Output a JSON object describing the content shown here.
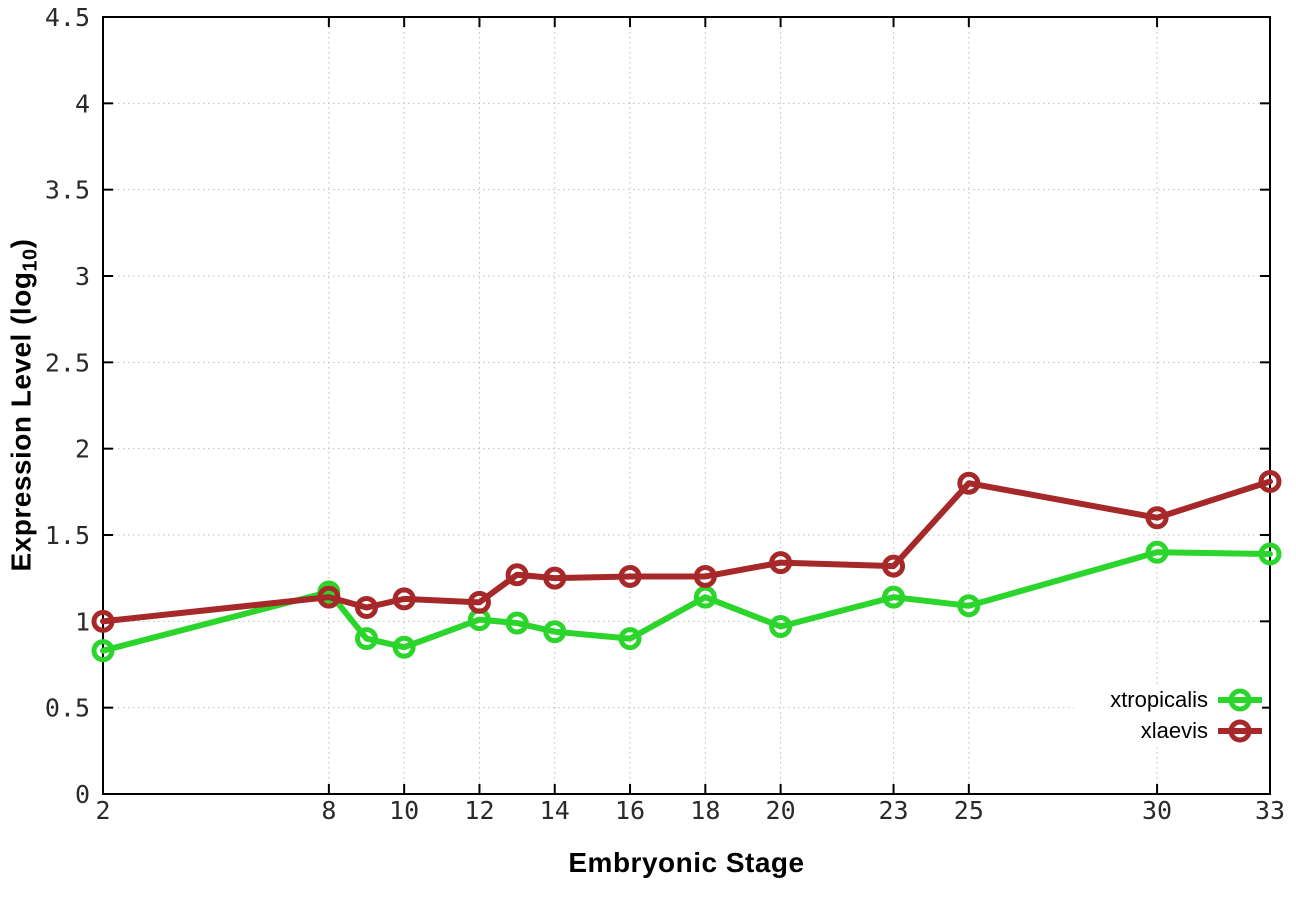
{
  "chart_data": {
    "type": "line",
    "xlabel": "Embryonic Stage",
    "ylabel": "Expression Level (log10)",
    "ylabel_parts": {
      "main": "Expression Level (log",
      "sub": "10",
      "close": ")"
    },
    "x": [
      2,
      8,
      9,
      10,
      12,
      13,
      14,
      16,
      18,
      20,
      23,
      25,
      30,
      33
    ],
    "series": [
      {
        "name": "xtropicalis",
        "color": "#2bd52b",
        "values": [
          0.83,
          1.17,
          0.9,
          0.85,
          1.01,
          0.99,
          0.94,
          0.9,
          1.14,
          0.97,
          1.14,
          1.09,
          1.4,
          1.39
        ]
      },
      {
        "name": "xlaevis",
        "color": "#a62828",
        "values": [
          1.0,
          1.14,
          1.08,
          1.13,
          1.11,
          1.27,
          1.25,
          1.26,
          1.26,
          1.34,
          1.32,
          1.8,
          1.6,
          1.81
        ]
      }
    ],
    "xlim": [
      2,
      33
    ],
    "ylim": [
      0,
      4.5
    ],
    "xticks": [
      2,
      8,
      10,
      12,
      14,
      16,
      18,
      20,
      23,
      25,
      30,
      33
    ],
    "xtick_labels": [
      "2",
      "8",
      "10",
      "12",
      "14",
      "16",
      "18",
      "20",
      "23",
      "25",
      "30",
      "33"
    ],
    "ytick_values": [
      0,
      0.5,
      1,
      1.5,
      2,
      2.5,
      3,
      3.5,
      4,
      4.5
    ],
    "ytick_labels": [
      "0",
      "0.5",
      "1",
      "1.5",
      "2",
      "2.5",
      "3",
      "3.5",
      "4",
      "4.5"
    ],
    "grid": true,
    "legend_position": "inside-bottom-right",
    "colors": {
      "grid": "#bdbdbd",
      "axis_border": "#000000",
      "tick_label": "#2a2a2a"
    }
  }
}
